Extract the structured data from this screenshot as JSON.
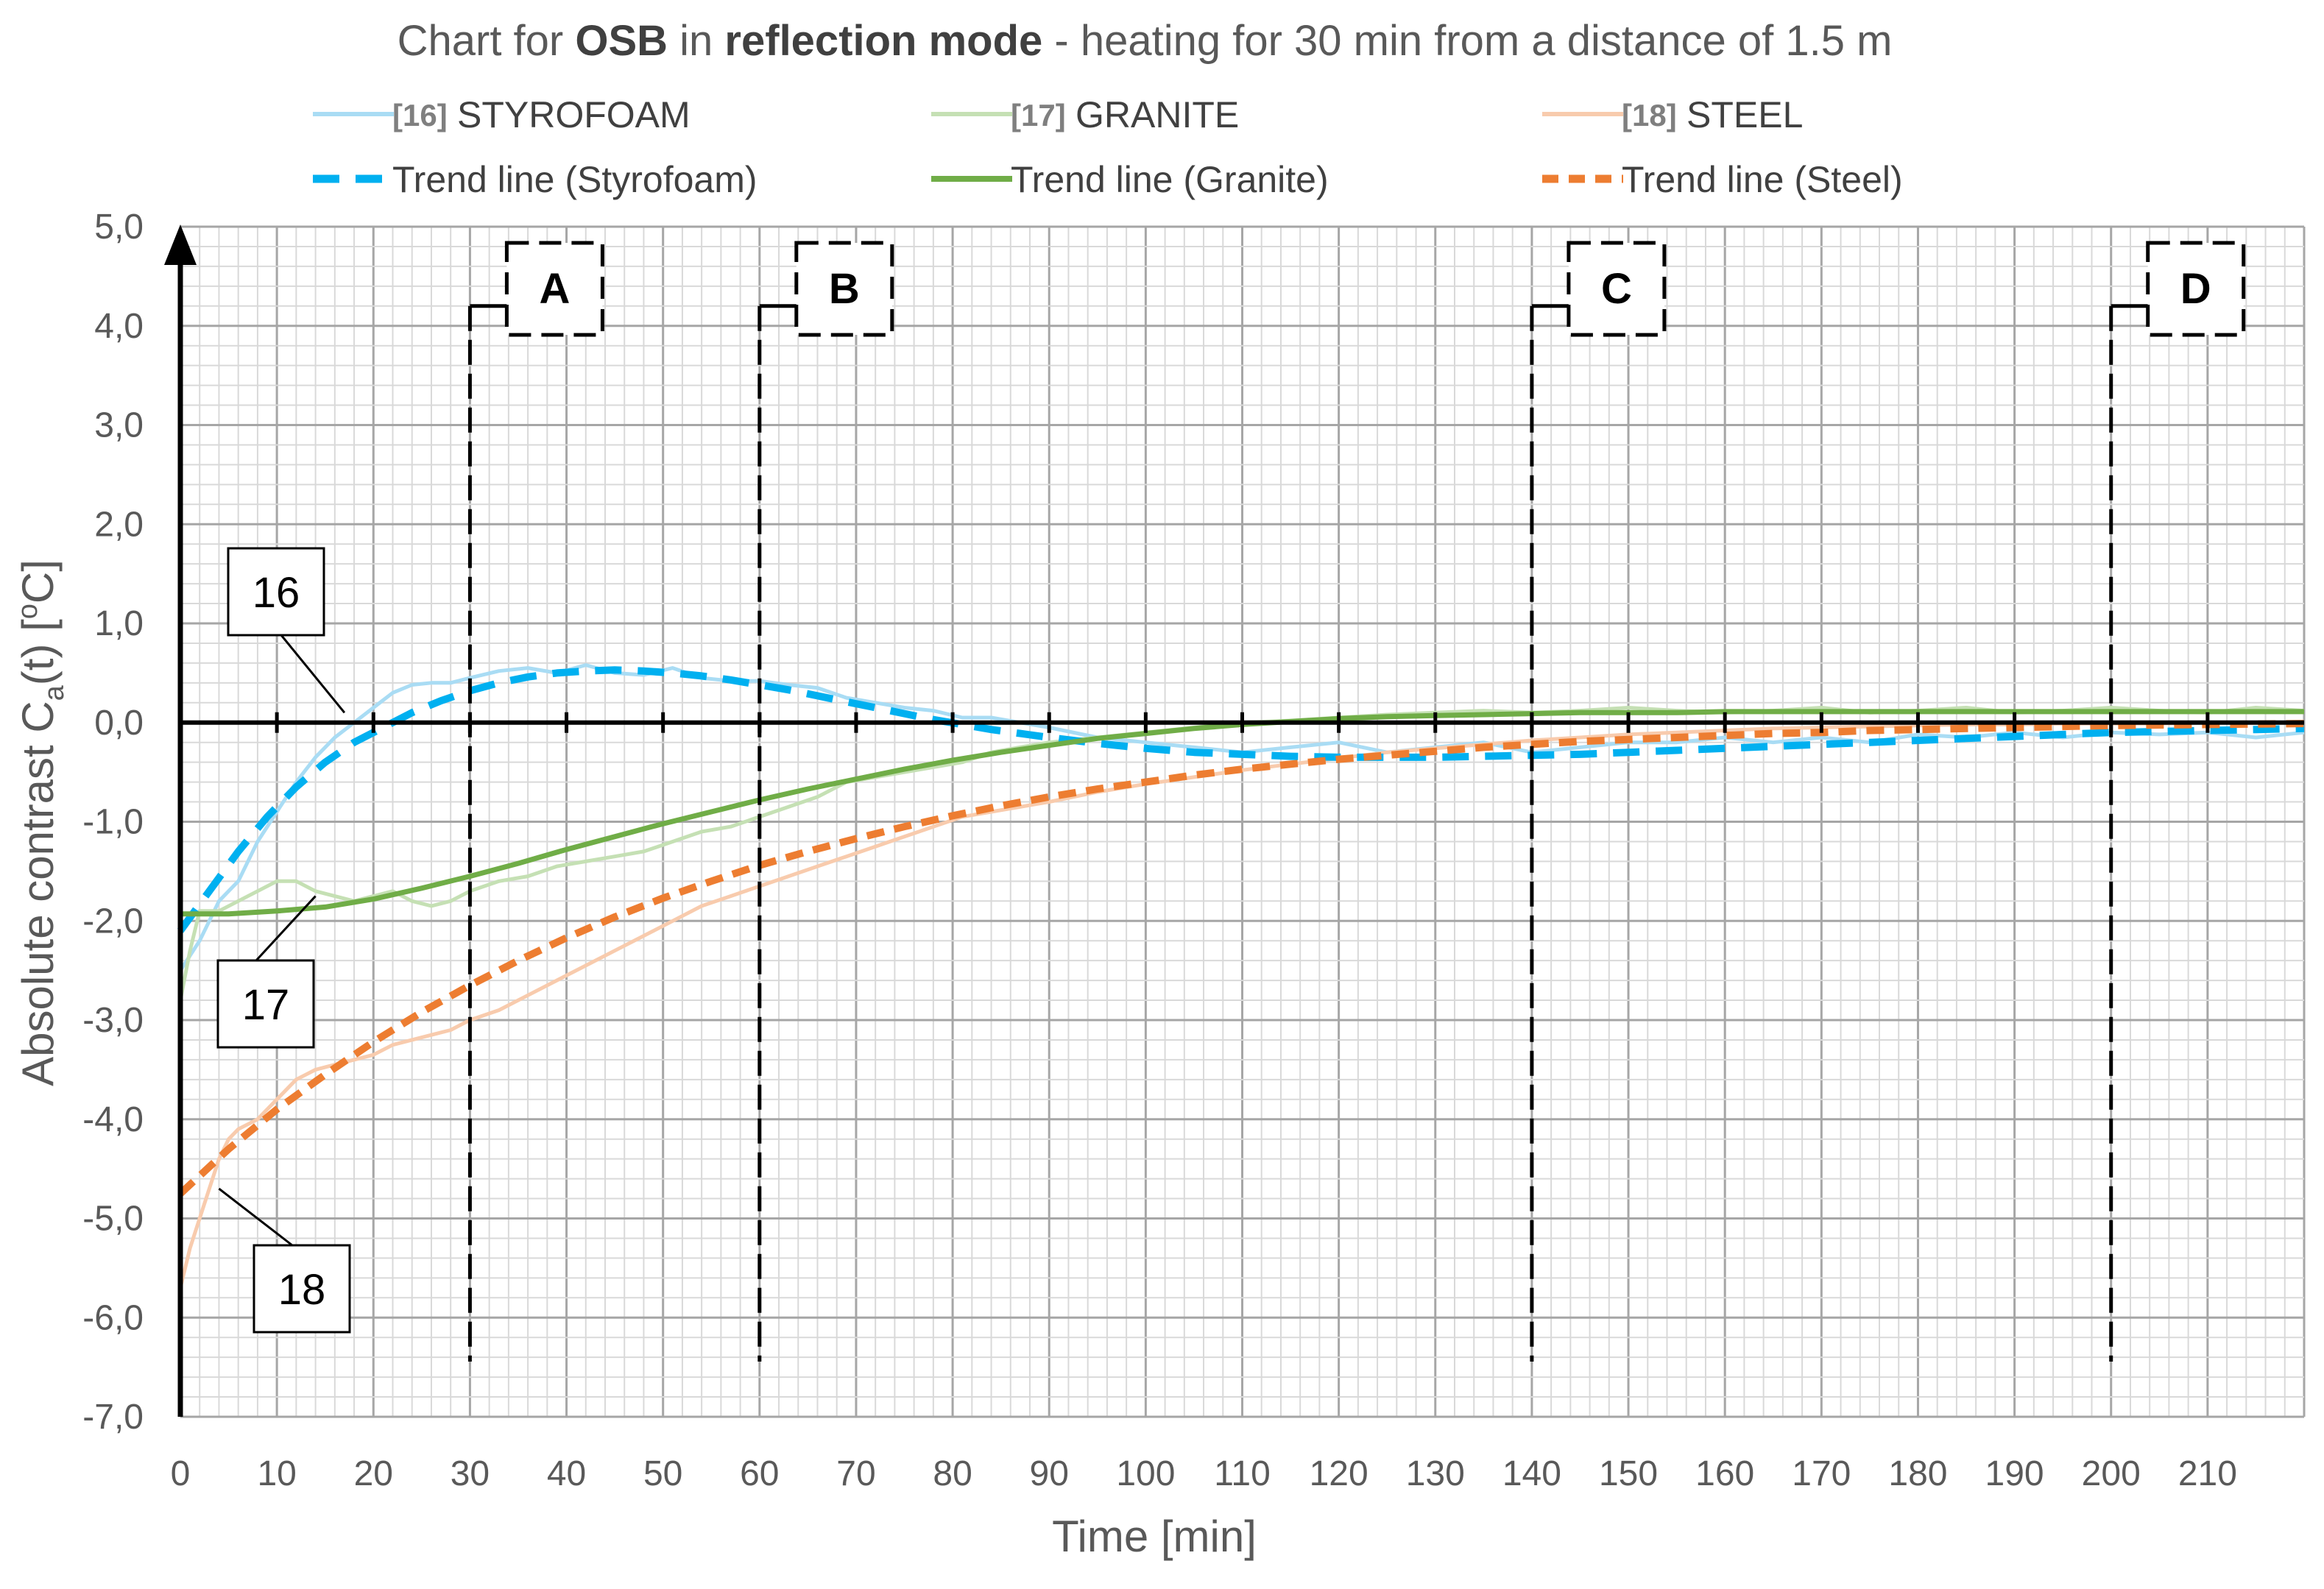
{
  "chart_data": {
    "type": "line",
    "title": {
      "parts": [
        {
          "text": "Chart for ",
          "bold": false
        },
        {
          "text": "OSB",
          "bold": true
        },
        {
          "text": " in ",
          "bold": false
        },
        {
          "text": "reflection mode",
          "bold": true
        },
        {
          "text": " - heating for 30 min from a distance of 1.5 m",
          "bold": false
        }
      ]
    },
    "xlabel": "Time [min]",
    "ylabel": {
      "main": "Absolute contrast C",
      "sub": "a",
      "rest": "(t)   [",
      "unit_sup": "o",
      "unit": "C]"
    },
    "xlim": [
      0,
      220
    ],
    "ylim": [
      -7,
      5
    ],
    "x_ticks": [
      0,
      10,
      20,
      30,
      40,
      50,
      60,
      70,
      80,
      90,
      100,
      110,
      120,
      130,
      140,
      150,
      160,
      170,
      180,
      190,
      200,
      210
    ],
    "y_ticks": [
      "5,0",
      "4,0",
      "3,0",
      "2,0",
      "1,0",
      "0,0",
      "-1,0",
      "-2,0",
      "-3,0",
      "-4,0",
      "-5,0",
      "-6,0",
      "-7,0"
    ],
    "y_tick_values": [
      5,
      4,
      3,
      2,
      1,
      0,
      -1,
      -2,
      -3,
      -4,
      -5,
      -6,
      -7
    ],
    "colors": {
      "styrofoam": "#00b0f0",
      "styrofoam_raw": "#a9dcf4",
      "granite": "#70ad47",
      "granite_raw": "#c5e0b4",
      "steel": "#ed7d31",
      "steel_raw": "#f8cbad",
      "grid_major": "#a6a6a6",
      "grid_minor": "#d9d9d9"
    },
    "legend": [
      {
        "ref": "[16]",
        "label": "STYROFOAM",
        "series": "styrofoam_raw"
      },
      {
        "ref": "[17]",
        "label": "GRANITE",
        "series": "granite_raw"
      },
      {
        "ref": "[18]",
        "label": "STEEL",
        "series": "steel_raw"
      },
      {
        "ref": "",
        "label": "Trend line (Styrofoam)",
        "series": "styrofoam"
      },
      {
        "ref": "",
        "label": "Trend line (Granite)",
        "series": "granite"
      },
      {
        "ref": "",
        "label": "Trend line (Steel)",
        "series": "steel"
      }
    ],
    "series": [
      {
        "name": "STYROFOAM",
        "key": "styrofoam_raw",
        "x": [
          0,
          2,
          4,
          6,
          8,
          10,
          12,
          14,
          16,
          18,
          20,
          22,
          24,
          26,
          28,
          30,
          33,
          36,
          39,
          42,
          45,
          48,
          51,
          54,
          57,
          60,
          63,
          66,
          69,
          72,
          75,
          78,
          81,
          84,
          87,
          90,
          95,
          100,
          105,
          110,
          115,
          120,
          125,
          130,
          135,
          140,
          145,
          150,
          155,
          160,
          165,
          170,
          175,
          180,
          185,
          190,
          195,
          200,
          205,
          210,
          215,
          220
        ],
        "y": [
          -2.5,
          -2.2,
          -1.8,
          -1.6,
          -1.2,
          -0.9,
          -0.6,
          -0.35,
          -0.15,
          0.0,
          0.15,
          0.3,
          0.38,
          0.4,
          0.4,
          0.45,
          0.52,
          0.55,
          0.5,
          0.58,
          0.5,
          0.48,
          0.55,
          0.45,
          0.42,
          0.42,
          0.38,
          0.35,
          0.25,
          0.2,
          0.15,
          0.12,
          0.05,
          0.05,
          0.0,
          -0.05,
          -0.15,
          -0.2,
          -0.25,
          -0.3,
          -0.25,
          -0.2,
          -0.3,
          -0.25,
          -0.2,
          -0.3,
          -0.25,
          -0.2,
          -0.2,
          -0.15,
          -0.2,
          -0.15,
          -0.2,
          -0.12,
          -0.15,
          -0.1,
          -0.15,
          -0.1,
          -0.12,
          -0.1,
          -0.15,
          -0.1
        ]
      },
      {
        "name": "GRANITE",
        "key": "granite_raw",
        "x": [
          0,
          1,
          2,
          4,
          6,
          8,
          10,
          12,
          14,
          16,
          18,
          20,
          22,
          24,
          26,
          28,
          30,
          33,
          36,
          39,
          42,
          45,
          48,
          51,
          54,
          57,
          60,
          63,
          66,
          69,
          72,
          75,
          78,
          81,
          84,
          87,
          90,
          95,
          100,
          105,
          110,
          115,
          120,
          125,
          130,
          135,
          140,
          145,
          150,
          155,
          160,
          165,
          170,
          175,
          180,
          185,
          190,
          195,
          200,
          205,
          210,
          215,
          220
        ],
        "y": [
          -2.8,
          -2.3,
          -1.9,
          -1.9,
          -1.8,
          -1.7,
          -1.6,
          -1.6,
          -1.7,
          -1.75,
          -1.8,
          -1.75,
          -1.7,
          -1.8,
          -1.85,
          -1.8,
          -1.7,
          -1.6,
          -1.55,
          -1.45,
          -1.4,
          -1.35,
          -1.3,
          -1.2,
          -1.1,
          -1.05,
          -0.95,
          -0.85,
          -0.75,
          -0.6,
          -0.55,
          -0.5,
          -0.45,
          -0.4,
          -0.3,
          -0.25,
          -0.2,
          -0.15,
          -0.1,
          -0.05,
          0.0,
          0.02,
          0.05,
          0.08,
          0.1,
          0.12,
          0.1,
          0.12,
          0.15,
          0.12,
          0.1,
          0.12,
          0.15,
          0.1,
          0.12,
          0.15,
          0.1,
          0.12,
          0.15,
          0.12,
          0.1,
          0.15,
          0.12
        ]
      },
      {
        "name": "STEEL",
        "key": "steel_raw",
        "x": [
          0,
          1,
          2,
          3,
          4,
          5,
          6,
          8,
          10,
          12,
          14,
          16,
          18,
          20,
          22,
          24,
          26,
          28,
          30,
          33,
          36,
          39,
          42,
          45,
          48,
          51,
          54,
          57,
          60,
          63,
          66,
          69,
          72,
          75,
          78,
          81,
          84,
          87,
          90,
          95,
          100,
          105,
          110,
          115,
          120,
          125,
          130,
          135,
          140,
          145,
          150,
          155,
          160,
          165,
          170,
          175,
          180,
          185,
          190,
          195,
          200,
          205,
          210,
          215,
          220
        ],
        "y": [
          -5.7,
          -5.3,
          -5.0,
          -4.7,
          -4.4,
          -4.2,
          -4.1,
          -4.0,
          -3.8,
          -3.6,
          -3.5,
          -3.45,
          -3.4,
          -3.35,
          -3.25,
          -3.2,
          -3.15,
          -3.1,
          -3.0,
          -2.9,
          -2.75,
          -2.6,
          -2.45,
          -2.3,
          -2.15,
          -2.0,
          -1.85,
          -1.75,
          -1.65,
          -1.55,
          -1.45,
          -1.35,
          -1.25,
          -1.15,
          -1.05,
          -0.95,
          -0.9,
          -0.85,
          -0.8,
          -0.7,
          -0.62,
          -0.55,
          -0.48,
          -0.42,
          -0.36,
          -0.3,
          -0.26,
          -0.22,
          -0.18,
          -0.15,
          -0.12,
          -0.1,
          -0.08,
          -0.06,
          -0.05,
          -0.04,
          -0.03,
          -0.02,
          -0.02,
          -0.01,
          -0.01,
          -0.01,
          0.0,
          0.0,
          0.0
        ]
      },
      {
        "name": "Trend line (Styrofoam)",
        "key": "styrofoam",
        "x": [
          0,
          3,
          6,
          9,
          12,
          15,
          18,
          21,
          24,
          27,
          30,
          33,
          36,
          39,
          42,
          45,
          48,
          51,
          54,
          57,
          60,
          63,
          66,
          69,
          72,
          75,
          78,
          81,
          84,
          87,
          90,
          95,
          100,
          105,
          110,
          115,
          120,
          125,
          130,
          135,
          140,
          145,
          150,
          155,
          160,
          165,
          170,
          175,
          180,
          185,
          190,
          195,
          200,
          205,
          210,
          215,
          220
        ],
        "y": [
          -2.1,
          -1.7,
          -1.3,
          -0.95,
          -0.65,
          -0.4,
          -0.2,
          -0.05,
          0.1,
          0.22,
          0.32,
          0.4,
          0.46,
          0.5,
          0.52,
          0.53,
          0.52,
          0.5,
          0.47,
          0.43,
          0.38,
          0.33,
          0.27,
          0.21,
          0.15,
          0.09,
          0.03,
          -0.02,
          -0.07,
          -0.11,
          -0.15,
          -0.21,
          -0.26,
          -0.3,
          -0.32,
          -0.34,
          -0.35,
          -0.35,
          -0.35,
          -0.34,
          -0.33,
          -0.32,
          -0.3,
          -0.28,
          -0.26,
          -0.24,
          -0.22,
          -0.2,
          -0.18,
          -0.16,
          -0.14,
          -0.12,
          -0.1,
          -0.09,
          -0.08,
          -0.07,
          -0.06
        ]
      },
      {
        "name": "Trend line (Granite)",
        "key": "granite",
        "x": [
          0,
          5,
          10,
          15,
          20,
          25,
          30,
          35,
          40,
          45,
          50,
          55,
          60,
          65,
          70,
          75,
          80,
          85,
          90,
          95,
          100,
          105,
          110,
          115,
          120,
          125,
          130,
          135,
          140,
          145,
          150,
          155,
          160,
          170,
          180,
          190,
          200,
          210,
          220
        ],
        "y": [
          -1.93,
          -1.93,
          -1.9,
          -1.86,
          -1.78,
          -1.67,
          -1.55,
          -1.42,
          -1.28,
          -1.15,
          -1.02,
          -0.9,
          -0.78,
          -0.67,
          -0.57,
          -0.47,
          -0.38,
          -0.3,
          -0.23,
          -0.16,
          -0.11,
          -0.06,
          -0.02,
          0.01,
          0.04,
          0.06,
          0.07,
          0.08,
          0.09,
          0.1,
          0.1,
          0.1,
          0.11,
          0.11,
          0.11,
          0.11,
          0.11,
          0.11,
          0.11
        ]
      },
      {
        "name": "Trend line (Steel)",
        "key": "steel",
        "x": [
          0,
          5,
          10,
          15,
          20,
          25,
          30,
          35,
          40,
          45,
          50,
          55,
          60,
          65,
          70,
          75,
          80,
          85,
          90,
          95,
          100,
          105,
          110,
          115,
          120,
          125,
          130,
          135,
          140,
          145,
          150,
          155,
          160,
          165,
          170,
          175,
          180,
          190,
          200,
          210,
          220
        ],
        "y": [
          -4.75,
          -4.3,
          -3.9,
          -3.55,
          -3.22,
          -2.92,
          -2.65,
          -2.4,
          -2.17,
          -1.96,
          -1.77,
          -1.6,
          -1.44,
          -1.3,
          -1.17,
          -1.05,
          -0.94,
          -0.84,
          -0.75,
          -0.67,
          -0.6,
          -0.53,
          -0.47,
          -0.42,
          -0.37,
          -0.33,
          -0.29,
          -0.25,
          -0.22,
          -0.19,
          -0.17,
          -0.15,
          -0.13,
          -0.11,
          -0.1,
          -0.08,
          -0.07,
          -0.05,
          -0.03,
          -0.02,
          -0.01
        ]
      }
    ],
    "phases": [
      {
        "label": "A",
        "x": 30
      },
      {
        "label": "B",
        "x": 60
      },
      {
        "label": "C",
        "x": 140
      },
      {
        "label": "D",
        "x": 200
      }
    ],
    "annotations": [
      {
        "label": "16",
        "target_x": 17,
        "target_y": 0.1
      },
      {
        "label": "17",
        "target_x": 14,
        "target_y": -1.75
      },
      {
        "label": "18",
        "target_x": 4,
        "target_y": -4.7
      }
    ]
  }
}
